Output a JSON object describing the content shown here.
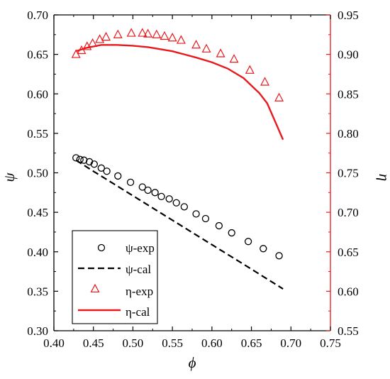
{
  "chart_data": {
    "type": "scatter",
    "xlabel": "ϕ",
    "ylabel_left": "ψ",
    "ylabel_right": "η",
    "xlim": [
      0.4,
      0.75
    ],
    "ylim_left": [
      0.3,
      0.7
    ],
    "ylim_right": [
      0.55,
      0.95
    ],
    "x_ticks": [
      "0.40",
      "0.45",
      "0.50",
      "0.55",
      "0.60",
      "0.65",
      "0.70",
      "0.75"
    ],
    "y_left_ticks": [
      "0.30",
      "0.35",
      "0.40",
      "0.45",
      "0.50",
      "0.55",
      "0.60",
      "0.65",
      "0.70"
    ],
    "y_right_ticks": [
      "0.55",
      "0.60",
      "0.65",
      "0.70",
      "0.75",
      "0.80",
      "0.85",
      "0.90",
      "0.95"
    ],
    "grid": false,
    "legend_position": "bottom-left",
    "colors": {
      "psi": "#000000",
      "eta": "#e8191c"
    },
    "series": [
      {
        "name": "ψ-exp",
        "legend_label": "ψ-exp",
        "axis": "left",
        "style": "circle-marker",
        "x": [
          0.428,
          0.433,
          0.438,
          0.445,
          0.451,
          0.46,
          0.467,
          0.481,
          0.497,
          0.512,
          0.519,
          0.528,
          0.536,
          0.546,
          0.555,
          0.565,
          0.58,
          0.592,
          0.609,
          0.625,
          0.646,
          0.665,
          0.685
        ],
        "y": [
          0.519,
          0.517,
          0.516,
          0.514,
          0.511,
          0.506,
          0.502,
          0.496,
          0.488,
          0.482,
          0.478,
          0.475,
          0.47,
          0.467,
          0.462,
          0.457,
          0.448,
          0.442,
          0.433,
          0.424,
          0.413,
          0.404,
          0.395
        ]
      },
      {
        "name": "ψ-cal",
        "legend_label": "ψ-cal",
        "axis": "left",
        "style": "dashed-line",
        "x": [
          0.428,
          0.45,
          0.5,
          0.55,
          0.6,
          0.65,
          0.69
        ],
        "y": [
          0.516,
          0.502,
          0.471,
          0.44,
          0.409,
          0.378,
          0.353
        ]
      },
      {
        "name": "η-exp",
        "legend_label": "η-exp",
        "axis": "right",
        "style": "triangle-marker",
        "x": [
          0.428,
          0.435,
          0.442,
          0.449,
          0.458,
          0.466,
          0.481,
          0.498,
          0.512,
          0.519,
          0.53,
          0.54,
          0.55,
          0.561,
          0.58,
          0.593,
          0.611,
          0.628,
          0.648,
          0.667,
          0.685
        ],
        "y": [
          0.9,
          0.905,
          0.91,
          0.914,
          0.919,
          0.922,
          0.925,
          0.927,
          0.927,
          0.926,
          0.925,
          0.923,
          0.921,
          0.918,
          0.912,
          0.907,
          0.901,
          0.894,
          0.88,
          0.865,
          0.845
        ]
      },
      {
        "name": "η-cal",
        "legend_label": "η-cal",
        "axis": "right",
        "style": "solid-line",
        "x": [
          0.428,
          0.44,
          0.45,
          0.46,
          0.47,
          0.48,
          0.5,
          0.52,
          0.55,
          0.58,
          0.6,
          0.62,
          0.64,
          0.66,
          0.67,
          0.68,
          0.69
        ],
        "y": [
          0.904,
          0.908,
          0.91,
          0.912,
          0.912,
          0.912,
          0.911,
          0.909,
          0.904,
          0.896,
          0.89,
          0.882,
          0.87,
          0.851,
          0.838,
          0.815,
          0.792
        ]
      }
    ]
  }
}
